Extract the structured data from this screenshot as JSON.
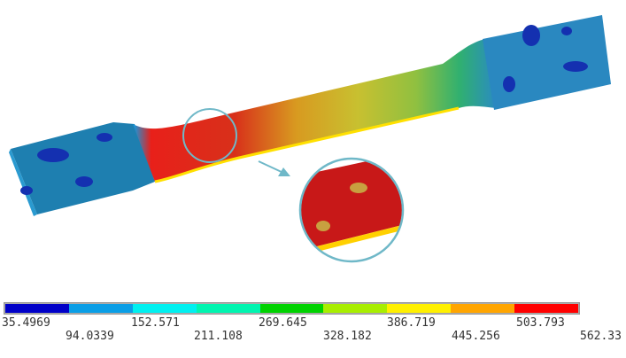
{
  "legend": {
    "colors": [
      "#0000c8",
      "#0a9ee6",
      "#00f0f0",
      "#00f5b0",
      "#00d200",
      "#a8ee00",
      "#fff000",
      "#ffa500",
      "#ff0000"
    ],
    "labels_top": [
      "35.4969",
      "152.571",
      "269.645",
      "386.719",
      "503.793"
    ],
    "labels_bottom": [
      "94.0339",
      "211.108",
      "328.182",
      "445.256",
      "562.33"
    ]
  },
  "highlight": {
    "circle_color": "#6fb8c8",
    "arrow_color": "#6fb8c8"
  }
}
